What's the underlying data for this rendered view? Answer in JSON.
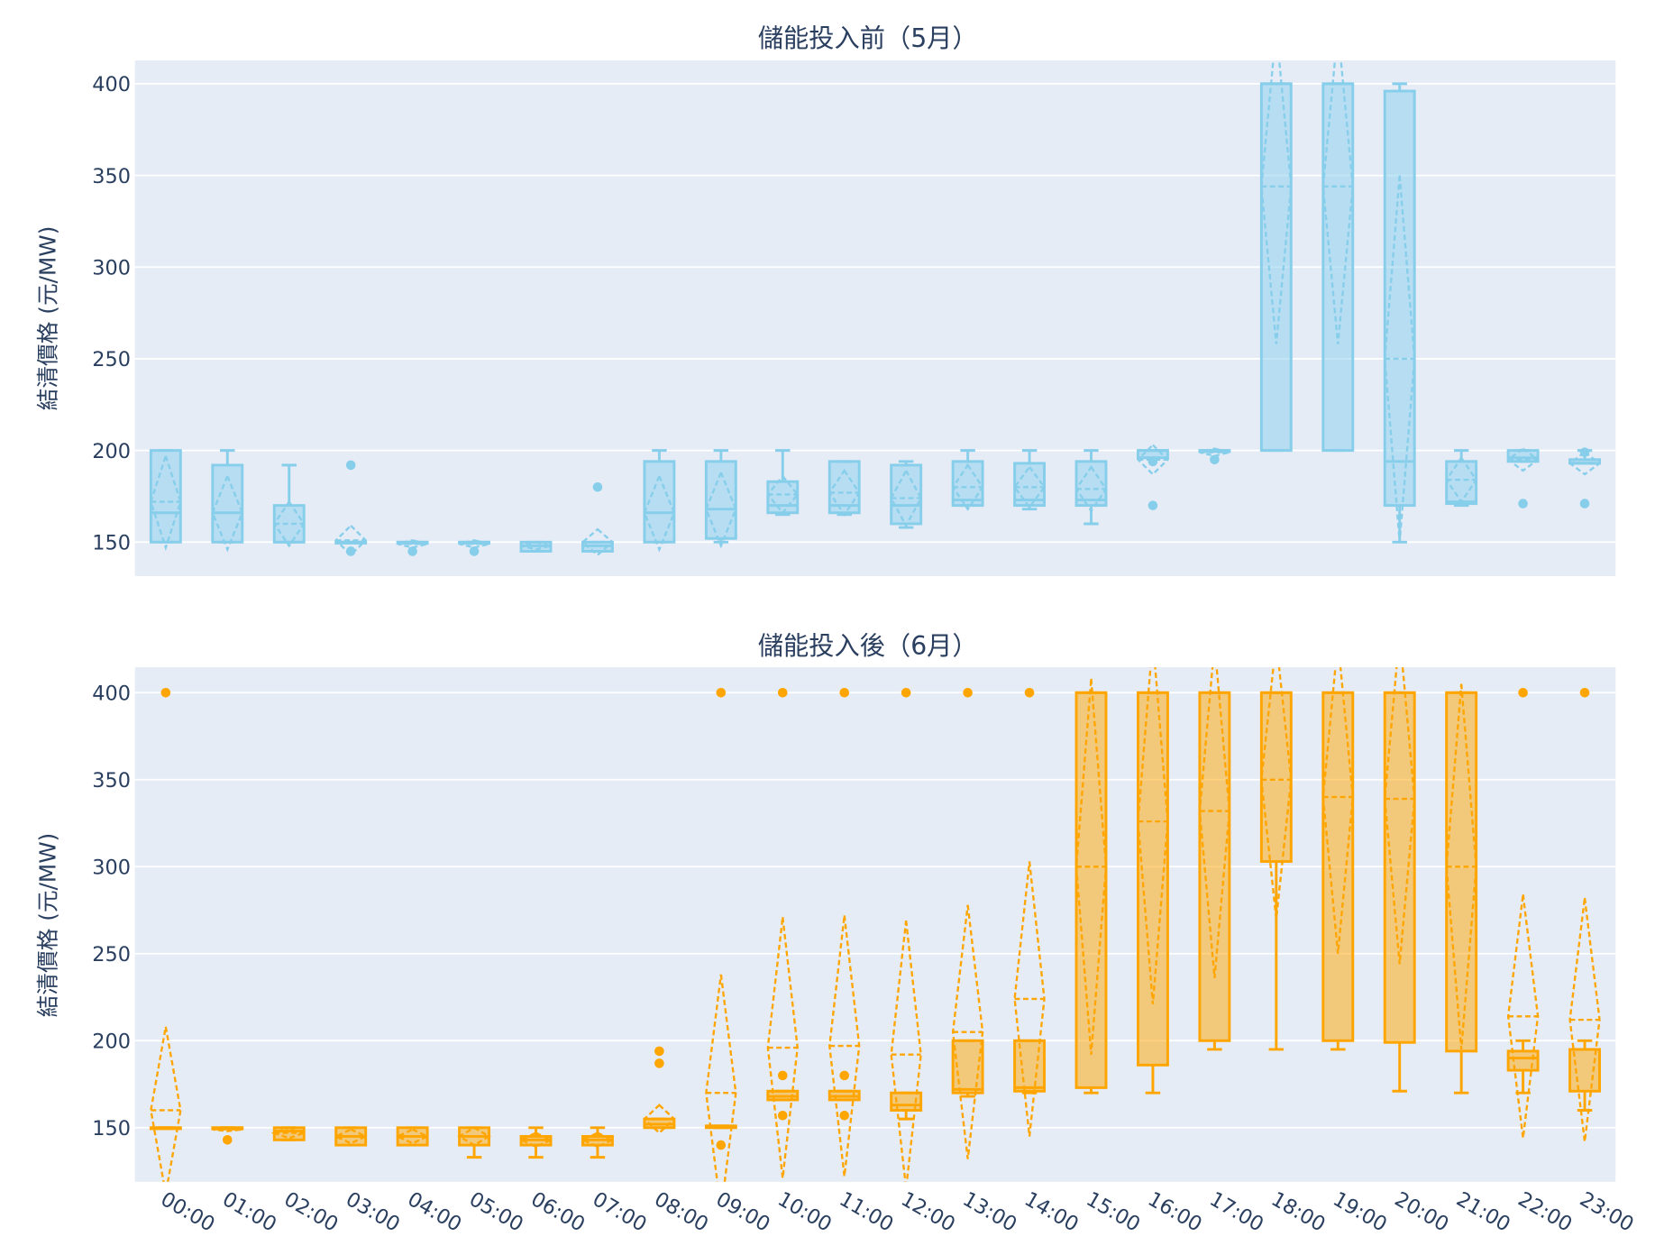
{
  "chart_data": [
    {
      "type": "box",
      "title": "儲能投入前（5月）",
      "ylabel": "結清價格 (元/MW)",
      "xlabel": "",
      "ylim": [
        131.5,
        412.7
      ],
      "yticks": [
        150,
        200,
        250,
        300,
        350,
        400
      ],
      "grid": true,
      "legend": "none",
      "color": "#87ceeb",
      "boxmean": "sd",
      "categories": [
        "00:00",
        "01:00",
        "02:00",
        "03:00",
        "04:00",
        "05:00",
        "06:00",
        "07:00",
        "08:00",
        "09:00",
        "10:00",
        "11:00",
        "12:00",
        "13:00",
        "14:00",
        "15:00",
        "16:00",
        "17:00",
        "18:00",
        "19:00",
        "20:00",
        "21:00",
        "22:00",
        "23:00"
      ],
      "boxes": [
        {
          "lo": 150,
          "q1": 150,
          "med": 166,
          "q3": 200,
          "hi": 200,
          "mean": 172,
          "sd": 25,
          "out": []
        },
        {
          "lo": 150,
          "q1": 150,
          "med": 166,
          "q3": 192,
          "hi": 200,
          "mean": 166,
          "sd": 20,
          "out": []
        },
        {
          "lo": 150,
          "q1": 150,
          "med": 150,
          "q3": 170,
          "hi": 192,
          "mean": 160,
          "sd": 12,
          "out": []
        },
        {
          "lo": 150,
          "q1": 150,
          "med": 150,
          "q3": 150,
          "hi": 150,
          "mean": 151,
          "sd": 8,
          "out": [
            192,
            145
          ]
        },
        {
          "lo": 150,
          "q1": 150,
          "med": 150,
          "q3": 150,
          "hi": 150,
          "mean": 149,
          "sd": 2,
          "out": [
            145
          ]
        },
        {
          "lo": 150,
          "q1": 150,
          "med": 150,
          "q3": 150,
          "hi": 150,
          "mean": 149,
          "sd": 2,
          "out": [
            145
          ]
        },
        {
          "lo": 145,
          "q1": 145,
          "med": 148,
          "q3": 150,
          "hi": 150,
          "mean": 148,
          "sd": 2,
          "out": []
        },
        {
          "lo": 145,
          "q1": 145,
          "med": 148,
          "q3": 150,
          "hi": 150,
          "mean": 150,
          "sd": 7,
          "out": [
            180
          ]
        },
        {
          "lo": 150,
          "q1": 150,
          "med": 166,
          "q3": 194,
          "hi": 200,
          "mean": 166,
          "sd": 20,
          "out": []
        },
        {
          "lo": 150,
          "q1": 152,
          "med": 168,
          "q3": 194,
          "hi": 200,
          "mean": 168,
          "sd": 20,
          "out": []
        },
        {
          "lo": 165,
          "q1": 166,
          "med": 170,
          "q3": 183,
          "hi": 200,
          "mean": 176,
          "sd": 10,
          "out": []
        },
        {
          "lo": 165,
          "q1": 166,
          "med": 170,
          "q3": 194,
          "hi": 194,
          "mean": 177,
          "sd": 12,
          "out": []
        },
        {
          "lo": 158,
          "q1": 160,
          "med": 170,
          "q3": 192,
          "hi": 194,
          "mean": 174,
          "sd": 15,
          "out": []
        },
        {
          "lo": 170,
          "q1": 170,
          "med": 173,
          "q3": 194,
          "hi": 200,
          "mean": 180,
          "sd": 12,
          "out": []
        },
        {
          "lo": 168,
          "q1": 170,
          "med": 173,
          "q3": 193,
          "hi": 200,
          "mean": 180,
          "sd": 11,
          "out": []
        },
        {
          "lo": 160,
          "q1": 170,
          "med": 173,
          "q3": 194,
          "hi": 200,
          "mean": 179,
          "sd": 12,
          "out": []
        },
        {
          "lo": 196,
          "q1": 196,
          "med": 200,
          "q3": 200,
          "hi": 200,
          "mean": 195,
          "sd": 8,
          "out": [
            194,
            170
          ]
        },
        {
          "lo": 200,
          "q1": 200,
          "med": 200,
          "q3": 200,
          "hi": 200,
          "mean": 199,
          "sd": 2,
          "out": [
            195
          ]
        },
        {
          "lo": 200,
          "q1": 200,
          "med": 400,
          "q3": 400,
          "hi": 400,
          "mean": 344,
          "sd": 86,
          "out": []
        },
        {
          "lo": 200,
          "q1": 200,
          "med": 400,
          "q3": 400,
          "hi": 400,
          "mean": 344,
          "sd": 86,
          "out": []
        },
        {
          "lo": 150,
          "q1": 170,
          "med": 194,
          "q3": 396,
          "hi": 400,
          "mean": 250,
          "sd": 100,
          "out": []
        },
        {
          "lo": 170,
          "q1": 171,
          "med": 172,
          "q3": 194,
          "hi": 200,
          "mean": 184,
          "sd": 12,
          "out": []
        },
        {
          "lo": 194,
          "q1": 194,
          "med": 196,
          "q3": 200,
          "hi": 200,
          "mean": 195,
          "sd": 6,
          "out": [
            171
          ]
        },
        {
          "lo": 193,
          "q1": 193,
          "med": 193,
          "q3": 195,
          "hi": 200,
          "mean": 193,
          "sd": 6,
          "out": [
            171,
            199
          ]
        }
      ]
    },
    {
      "type": "box",
      "title": "儲能投入後（6月）",
      "ylabel": "結清價格 (元/MW)",
      "xlabel": "",
      "ylim": [
        118.9,
        414.6
      ],
      "yticks": [
        150,
        200,
        250,
        300,
        350,
        400
      ],
      "grid": true,
      "legend": "none",
      "color": "#ffa500",
      "boxmean": "sd",
      "categories": [
        "00:00",
        "01:00",
        "02:00",
        "03:00",
        "04:00",
        "05:00",
        "06:00",
        "07:00",
        "08:00",
        "09:00",
        "10:00",
        "11:00",
        "12:00",
        "13:00",
        "14:00",
        "15:00",
        "16:00",
        "17:00",
        "18:00",
        "19:00",
        "20:00",
        "21:00",
        "22:00",
        "23:00"
      ],
      "boxes": [
        {
          "lo": 150,
          "q1": 150,
          "med": 150,
          "q3": 150,
          "hi": 150,
          "mean": 160,
          "sd": 48,
          "out": [
            400
          ]
        },
        {
          "lo": 150,
          "q1": 150,
          "med": 150,
          "q3": 150,
          "hi": 150,
          "mean": 149,
          "sd": 1,
          "out": [
            143
          ]
        },
        {
          "lo": 143,
          "q1": 143,
          "med": 148,
          "q3": 150,
          "hi": 150,
          "mean": 147,
          "sd": 3,
          "out": []
        },
        {
          "lo": 140,
          "q1": 140,
          "med": 145,
          "q3": 150,
          "hi": 150,
          "mean": 145,
          "sd": 4,
          "out": []
        },
        {
          "lo": 140,
          "q1": 140,
          "med": 145,
          "q3": 150,
          "hi": 150,
          "mean": 145,
          "sd": 4,
          "out": []
        },
        {
          "lo": 133,
          "q1": 140,
          "med": 145,
          "q3": 150,
          "hi": 150,
          "mean": 145,
          "sd": 5,
          "out": []
        },
        {
          "lo": 133,
          "q1": 140,
          "med": 143,
          "q3": 145,
          "hi": 150,
          "mean": 143,
          "sd": 4,
          "out": []
        },
        {
          "lo": 133,
          "q1": 140,
          "med": 143,
          "q3": 145,
          "hi": 150,
          "mean": 143,
          "sd": 4,
          "out": []
        },
        {
          "lo": 150,
          "q1": 150,
          "med": 152,
          "q3": 155,
          "hi": 155,
          "mean": 155,
          "sd": 8,
          "out": [
            187,
            194
          ]
        },
        {
          "lo": 150,
          "q1": 150,
          "med": 151,
          "q3": 151,
          "hi": 151,
          "mean": 170,
          "sd": 68,
          "out": [
            140,
            400
          ]
        },
        {
          "lo": 166,
          "q1": 166,
          "med": 168,
          "q3": 171,
          "hi": 171,
          "mean": 196,
          "sd": 75,
          "out": [
            157,
            180,
            400
          ]
        },
        {
          "lo": 166,
          "q1": 166,
          "med": 168,
          "q3": 171,
          "hi": 171,
          "mean": 197,
          "sd": 75,
          "out": [
            157,
            180,
            400
          ]
        },
        {
          "lo": 155,
          "q1": 160,
          "med": 163,
          "q3": 170,
          "hi": 170,
          "mean": 192,
          "sd": 77,
          "out": [
            400
          ]
        },
        {
          "lo": 168,
          "q1": 170,
          "med": 172,
          "q3": 200,
          "hi": 200,
          "mean": 205,
          "sd": 73,
          "out": [
            400
          ]
        },
        {
          "lo": 170,
          "q1": 171,
          "med": 173,
          "q3": 200,
          "hi": 200,
          "mean": 224,
          "sd": 79,
          "out": [
            400
          ]
        },
        {
          "lo": 170,
          "q1": 173,
          "med": 400,
          "q3": 400,
          "hi": 400,
          "mean": 300,
          "sd": 108,
          "out": []
        },
        {
          "lo": 170,
          "q1": 186,
          "med": 400,
          "q3": 400,
          "hi": 400,
          "mean": 326,
          "sd": 105,
          "out": []
        },
        {
          "lo": 195,
          "q1": 200,
          "med": 400,
          "q3": 400,
          "hi": 400,
          "mean": 332,
          "sd": 96,
          "out": []
        },
        {
          "lo": 195,
          "q1": 303,
          "med": 400,
          "q3": 400,
          "hi": 400,
          "mean": 350,
          "sd": 80,
          "out": []
        },
        {
          "lo": 195,
          "q1": 200,
          "med": 400,
          "q3": 400,
          "hi": 400,
          "mean": 340,
          "sd": 90,
          "out": []
        },
        {
          "lo": 171,
          "q1": 199,
          "med": 400,
          "q3": 400,
          "hi": 400,
          "mean": 339,
          "sd": 95,
          "out": []
        },
        {
          "lo": 170,
          "q1": 194,
          "med": 400,
          "q3": 400,
          "hi": 400,
          "mean": 300,
          "sd": 105,
          "out": []
        },
        {
          "lo": 170,
          "q1": 183,
          "med": 190,
          "q3": 194,
          "hi": 200,
          "mean": 214,
          "sd": 70,
          "out": [
            400
          ]
        },
        {
          "lo": 160,
          "q1": 171,
          "med": 195,
          "q3": 195,
          "hi": 200,
          "mean": 212,
          "sd": 70,
          "out": [
            400
          ]
        }
      ]
    }
  ]
}
